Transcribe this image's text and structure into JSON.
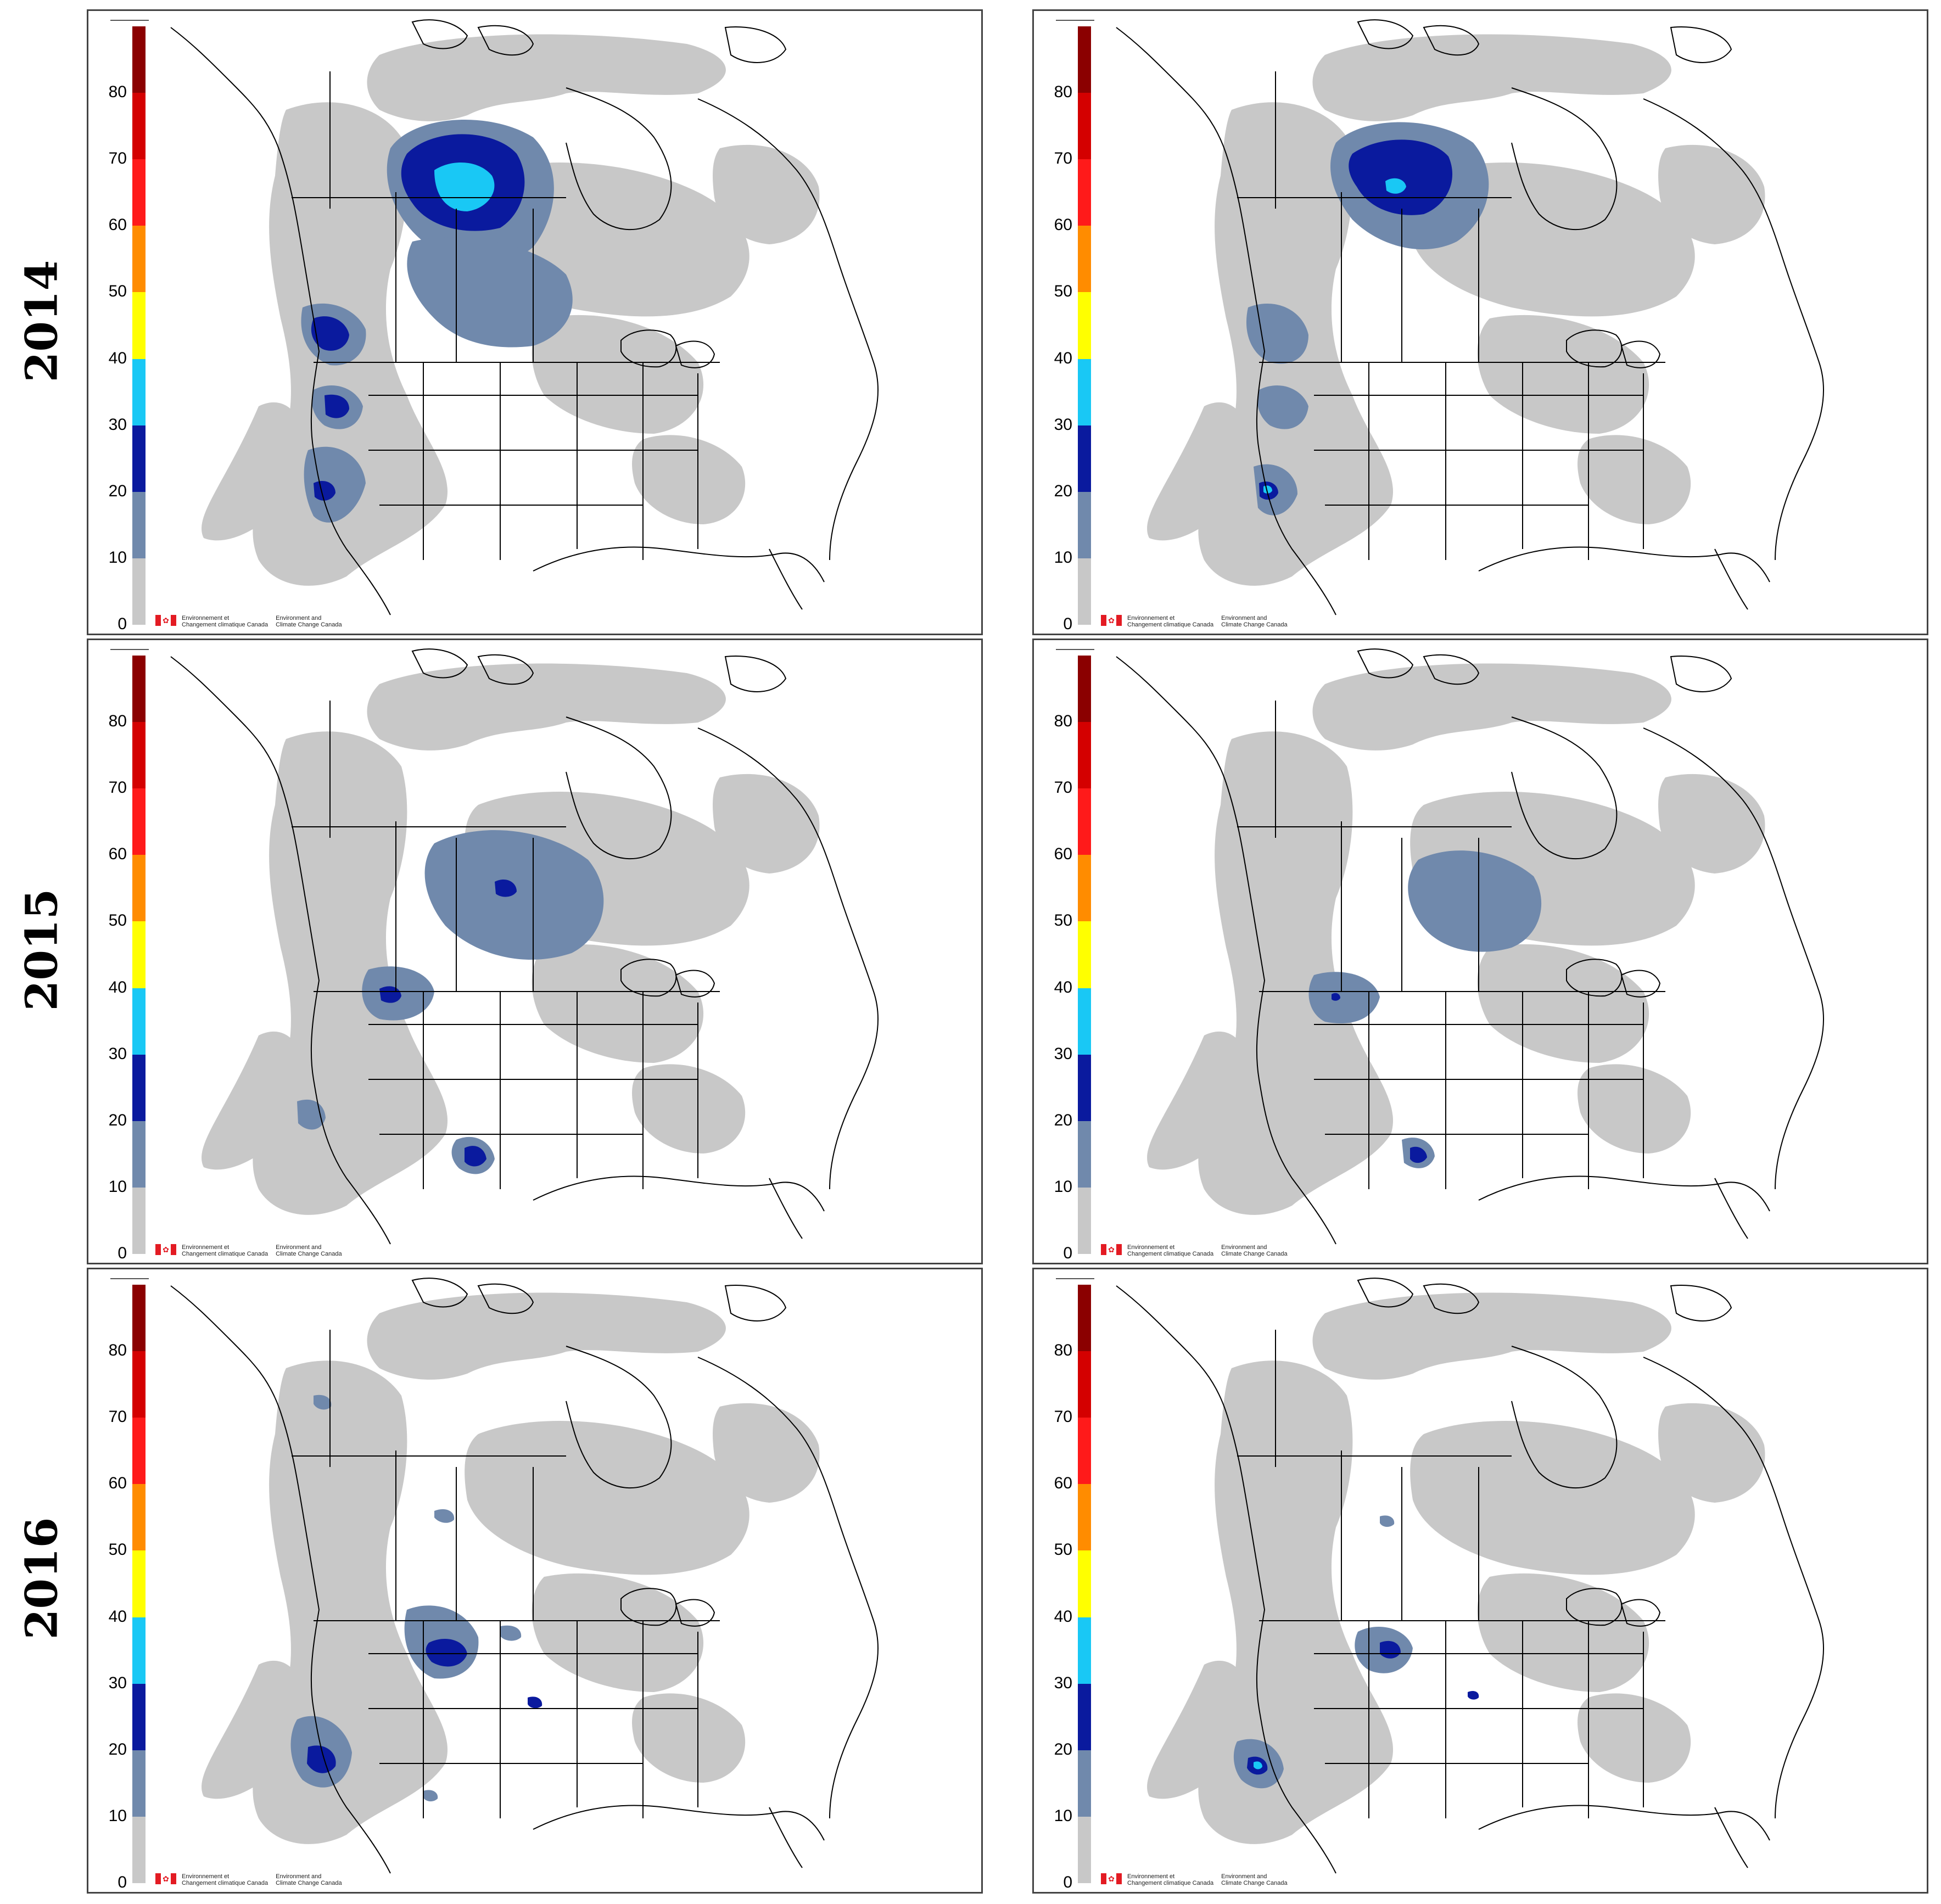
{
  "years": [
    "2014",
    "2015",
    "2016"
  ],
  "colorbar": {
    "ticks": [
      "80",
      "70",
      "60",
      "50",
      "40",
      "30",
      "20",
      "10",
      "0"
    ],
    "bands": [
      {
        "from": 0,
        "to": 10,
        "color": "#c8c8c8"
      },
      {
        "from": 10,
        "to": 20,
        "color": "#7089ac"
      },
      {
        "from": 20,
        "to": 30,
        "color": "#0a1a9e"
      },
      {
        "from": 30,
        "to": 40,
        "color": "#19c8f5"
      },
      {
        "from": 40,
        "to": 50,
        "color": "#ffff00"
      },
      {
        "from": 50,
        "to": 60,
        "color": "#ff8c00"
      },
      {
        "from": 60,
        "to": 70,
        "color": "#ff1a1a"
      },
      {
        "from": 70,
        "to": 80,
        "color": "#d40000"
      },
      {
        "from": 80,
        "to": 90,
        "color": "#8b0000"
      }
    ]
  },
  "logo": {
    "fr_line1": "Environnement et",
    "fr_line2": "Changement climatique Canada",
    "en_line1": "Environment and",
    "en_line2": "Climate Change Canada"
  },
  "colors": {
    "gray": "#c8c8c8",
    "steel": "#7089ac",
    "navy": "#0a1a9e",
    "cyan": "#19c8f5"
  }
}
